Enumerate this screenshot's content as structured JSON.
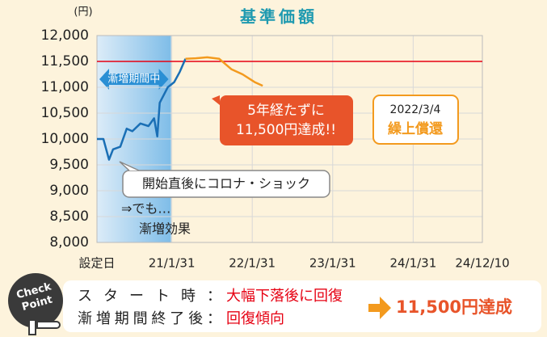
{
  "chart_data": {
    "type": "line",
    "title": "基準価額",
    "y_unit": "(円)",
    "xlim": [
      0,
      4.79
    ],
    "xticks": [
      {
        "value": 0,
        "label": "設定日"
      },
      {
        "value": 0.93,
        "label": "21/1/31"
      },
      {
        "value": 1.93,
        "label": "22/1/31"
      },
      {
        "value": 2.93,
        "label": "23/1/31"
      },
      {
        "value": 3.93,
        "label": "24/1/31"
      },
      {
        "value": 4.79,
        "label": "24/12/10"
      }
    ],
    "ylim": [
      8000,
      12000
    ],
    "yticks": [
      {
        "value": 8000,
        "label": "8,000"
      },
      {
        "value": 8500,
        "label": "8,500"
      },
      {
        "value": 9000,
        "label": "9,000"
      },
      {
        "value": 9500,
        "label": "9,500"
      },
      {
        "value": 10000,
        "label": "10,000"
      },
      {
        "value": 10500,
        "label": "10,500"
      },
      {
        "value": 11000,
        "label": "11,000"
      },
      {
        "value": 11500,
        "label": "11,500"
      },
      {
        "value": 12000,
        "label": "12,000"
      }
    ],
    "series": [
      {
        "color": "#1a6fb5",
        "x": [
          0,
          0.08,
          0.15,
          0.2,
          0.29,
          0.37,
          0.44,
          0.54,
          0.64,
          0.71,
          0.75,
          0.78,
          0.88,
          0.96,
          1.03,
          1.1
        ],
        "values": [
          10000,
          10000,
          9600,
          9800,
          9850,
          10200,
          10150,
          10300,
          10250,
          10400,
          10050,
          10700,
          11000,
          11100,
          11300,
          11550
        ]
      },
      {
        "color": "#f39a1e",
        "x": [
          1.1,
          1.23,
          1.37,
          1.52,
          1.67,
          1.81,
          1.96,
          2.06
        ],
        "values": [
          11550,
          11560,
          11580,
          11550,
          11350,
          11250,
          11100,
          11030
        ]
      }
    ],
    "reference_line": {
      "value": 11500,
      "color": "#e60012"
    },
    "shaded_period": {
      "xlim": [
        0,
        0.92
      ],
      "label": "漸増期間中"
    },
    "annotations": {
      "covid": "開始直後にコロナ・ショック",
      "effect": [
        "⇒でも…",
        "漸増効果"
      ],
      "achieved": [
        "5年経たずに",
        "11,500円達成!!"
      ],
      "redemption": [
        "2022/3/4",
        "繰上償還"
      ]
    }
  },
  "check_point": {
    "badge": [
      "Check",
      "Point"
    ],
    "rows": [
      {
        "label": "スタート時：",
        "text": "大幅下落後に回復"
      },
      {
        "label": "漸増期間終了後：",
        "text": "回復傾向"
      }
    ],
    "result": "11,500円達成"
  }
}
